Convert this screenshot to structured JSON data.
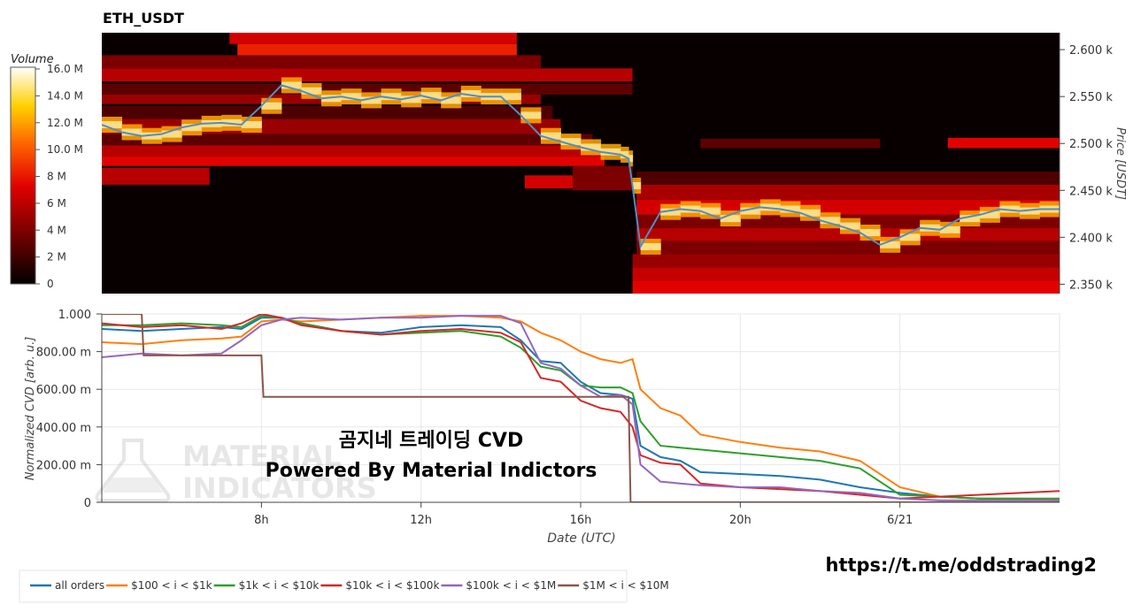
{
  "title": "ETH_USDT",
  "colorbar": {
    "label": "Volume",
    "ticks": [
      "16.0 M",
      "14.0 M",
      "12.0 M",
      "10.0 M",
      "8 M",
      "6 M",
      "4 M",
      "2 M",
      "0"
    ]
  },
  "heatmap_panel": {
    "ylabel": "Price [USDT]",
    "ticks": [
      "2.600 k",
      "2.550 k",
      "2.500 k",
      "2.450 k",
      "2.400 k",
      "2.350 k"
    ]
  },
  "cvd_panel": {
    "ylabel": "Normalized CVD [arb. u.]",
    "yticks": [
      "1.000",
      "800.00 m",
      "600.00 m",
      "400.00 m",
      "200.00 m",
      "0"
    ],
    "xticks": [
      "8h",
      "12h",
      "16h",
      "20h",
      "6/21"
    ],
    "xlabel": "Date (UTC)"
  },
  "overlay": {
    "line1": "곰지네 트레이딩 CVD",
    "line2": "Powered By Material Indictors"
  },
  "watermark": {
    "line1": "MATERIAL",
    "line2": "INDICATORS"
  },
  "link": "https://t.me/oddstrading2",
  "colors": {
    "all_orders": "#1f77b4",
    "s100_1k": "#ff7f0e",
    "s1k_10k": "#2ca02c",
    "s10k_100k": "#d62728",
    "s100k_1m": "#9467bd",
    "s1m_10m": "#8c564b",
    "price_line": "#4a90c8",
    "heat_low": "#000000",
    "heat_mid": "#cc0000",
    "heat_high": "#ffff66"
  },
  "chart_data": [
    {
      "type": "heatmap",
      "title": "ETH_USDT",
      "xlabel": "",
      "ylabel": "Price [USDT]",
      "ylim": [
        2340,
        2618
      ],
      "xlim": [
        4,
        28
      ],
      "value_range": [
        0,
        16.5
      ],
      "value_unit": "M",
      "price_series": {
        "x": [
          4.0,
          4.5,
          5.0,
          5.5,
          6.0,
          6.5,
          7.0,
          7.5,
          8.0,
          8.5,
          9.0,
          9.5,
          10.0,
          10.5,
          11.0,
          11.5,
          12.0,
          12.5,
          13.0,
          13.5,
          14.0,
          14.5,
          15.0,
          15.5,
          16.0,
          16.5,
          17.0,
          17.2,
          17.3,
          17.5,
          18.0,
          18.5,
          19.0,
          19.5,
          20.0,
          20.5,
          21.0,
          21.5,
          22.0,
          22.5,
          23.0,
          23.5,
          24.0,
          24.5,
          25.0,
          25.5,
          26.0,
          26.5,
          27.0,
          27.5,
          28.0
        ],
        "y": [
          2520,
          2512,
          2508,
          2510,
          2517,
          2521,
          2522,
          2520,
          2540,
          2562,
          2556,
          2548,
          2550,
          2546,
          2550,
          2547,
          2551,
          2546,
          2553,
          2550,
          2550,
          2530,
          2508,
          2502,
          2496,
          2491,
          2488,
          2484,
          2455,
          2390,
          2427,
          2430,
          2428,
          2420,
          2428,
          2432,
          2430,
          2426,
          2418,
          2412,
          2405,
          2392,
          2400,
          2410,
          2408,
          2420,
          2424,
          2430,
          2428,
          2430,
          2430
        ]
      },
      "bands": [
        {
          "y0": 2606,
          "y1": 2618,
          "x0": 7.2,
          "x1": 14.4,
          "v": 7
        },
        {
          "y0": 2594,
          "y1": 2606,
          "x0": 7.4,
          "x1": 14.4,
          "v": 8.5
        },
        {
          "y0": 2580,
          "y1": 2594,
          "x0": 4.0,
          "x1": 15.0,
          "v": 4
        },
        {
          "y0": 2566,
          "y1": 2580,
          "x0": 4.0,
          "x1": 17.3,
          "v": 6
        },
        {
          "y0": 2552,
          "y1": 2564,
          "x0": 4.0,
          "x1": 17.3,
          "v": 3
        },
        {
          "y0": 2542,
          "y1": 2552,
          "x0": 4.0,
          "x1": 15.0,
          "v": 5
        },
        {
          "y0": 2526,
          "y1": 2540,
          "x0": 4.0,
          "x1": 15.3,
          "v": 2.5
        },
        {
          "y0": 2510,
          "y1": 2526,
          "x0": 4.0,
          "x1": 15.5,
          "v": 5
        },
        {
          "y0": 2498,
          "y1": 2510,
          "x0": 4.0,
          "x1": 16.3,
          "v": 3
        },
        {
          "y0": 2486,
          "y1": 2498,
          "x0": 4.0,
          "x1": 16.5,
          "v": 6
        },
        {
          "y0": 2476,
          "y1": 2486,
          "x0": 4.0,
          "x1": 16.6,
          "v": 7.5
        },
        {
          "y0": 2456,
          "y1": 2474,
          "x0": 4.0,
          "x1": 6.7,
          "v": 6
        },
        {
          "y0": 2452,
          "y1": 2466,
          "x0": 14.6,
          "x1": 17.3,
          "v": 7
        },
        {
          "y0": 2450,
          "y1": 2476,
          "x0": 15.8,
          "x1": 17.3,
          "v": 4
        },
        {
          "y0": 2495,
          "y1": 2505,
          "x0": 19.0,
          "x1": 23.5,
          "v": 3
        },
        {
          "y0": 2495,
          "y1": 2506,
          "x0": 25.2,
          "x1": 28.0,
          "v": 7.5
        },
        {
          "y0": 2456,
          "y1": 2470,
          "x0": 17.4,
          "x1": 28.0,
          "v": 2.5
        },
        {
          "y0": 2440,
          "y1": 2456,
          "x0": 17.4,
          "x1": 28.0,
          "v": 5.5
        },
        {
          "y0": 2424,
          "y1": 2440,
          "x0": 17.4,
          "x1": 28.0,
          "v": 7
        },
        {
          "y0": 2410,
          "y1": 2424,
          "x0": 17.4,
          "x1": 28.0,
          "v": 4
        },
        {
          "y0": 2396,
          "y1": 2410,
          "x0": 17.4,
          "x1": 28.0,
          "v": 6
        },
        {
          "y0": 2382,
          "y1": 2396,
          "x0": 17.4,
          "x1": 28.0,
          "v": 4
        },
        {
          "y0": 2368,
          "y1": 2382,
          "x0": 17.3,
          "x1": 28.0,
          "v": 5
        },
        {
          "y0": 2354,
          "y1": 2368,
          "x0": 17.3,
          "x1": 28.0,
          "v": 6.5
        },
        {
          "y0": 2340,
          "y1": 2354,
          "x0": 17.3,
          "x1": 28.0,
          "v": 7.5
        }
      ]
    },
    {
      "type": "line",
      "title": "",
      "xlabel": "Date (UTC)",
      "ylabel": "Normalized CVD [arb. u.]",
      "x_ticks": [
        8,
        12,
        16,
        20,
        24
      ],
      "x_tick_labels": [
        "8h",
        "12h",
        "16h",
        "20h",
        "6/21"
      ],
      "xlim": [
        4,
        28
      ],
      "ylim": [
        0,
        1.0
      ],
      "grid": true,
      "legend": "bottom-left",
      "series": [
        {
          "name": "all orders",
          "x": [
            4,
            5,
            6,
            7,
            7.5,
            8,
            8.5,
            9,
            10,
            11,
            12,
            13,
            14,
            14.5,
            15,
            15.5,
            16,
            16.5,
            17,
            17.3,
            17.5,
            18,
            18.5,
            19,
            20,
            21,
            22,
            23,
            24,
            25,
            26,
            27,
            28
          ],
          "y": [
            0.92,
            0.91,
            0.92,
            0.93,
            0.92,
            0.98,
            0.98,
            0.95,
            0.91,
            0.9,
            0.93,
            0.94,
            0.93,
            0.86,
            0.75,
            0.74,
            0.64,
            0.58,
            0.57,
            0.55,
            0.3,
            0.24,
            0.22,
            0.16,
            0.15,
            0.14,
            0.12,
            0.08,
            0.05,
            0.03,
            0.02,
            0.015,
            0.01
          ]
        },
        {
          "name": "$100 < i < $1k",
          "x": [
            4,
            5,
            6,
            7,
            7.5,
            8,
            8.5,
            9,
            10,
            11,
            12,
            13,
            14,
            14.5,
            15,
            15.5,
            16,
            16.5,
            17,
            17.3,
            17.5,
            18,
            18.5,
            19,
            20,
            21,
            22,
            23,
            24,
            25,
            26,
            27,
            28
          ],
          "y": [
            0.85,
            0.84,
            0.86,
            0.87,
            0.88,
            0.96,
            0.97,
            0.96,
            0.97,
            0.98,
            0.99,
            0.99,
            0.98,
            0.96,
            0.9,
            0.86,
            0.8,
            0.76,
            0.74,
            0.76,
            0.6,
            0.5,
            0.46,
            0.36,
            0.32,
            0.29,
            0.27,
            0.22,
            0.08,
            0.03,
            0.02,
            0.02,
            0.015
          ]
        },
        {
          "name": "$1k < i < $10k",
          "x": [
            4,
            5,
            6,
            7,
            7.5,
            8,
            8.5,
            9,
            10,
            11,
            12,
            13,
            14,
            14.5,
            15,
            15.5,
            16,
            16.5,
            17,
            17.3,
            17.5,
            18,
            18.5,
            19,
            20,
            21,
            22,
            23,
            24,
            25,
            26,
            27,
            28
          ],
          "y": [
            0.94,
            0.94,
            0.95,
            0.94,
            0.93,
            0.99,
            0.98,
            0.95,
            0.91,
            0.89,
            0.9,
            0.91,
            0.88,
            0.82,
            0.72,
            0.7,
            0.62,
            0.61,
            0.61,
            0.58,
            0.43,
            0.3,
            0.29,
            0.28,
            0.26,
            0.24,
            0.22,
            0.18,
            0.04,
            0.03,
            0.02,
            0.02,
            0.02
          ]
        },
        {
          "name": "$10k < i < $100k",
          "x": [
            4,
            5,
            6,
            7,
            7.5,
            8,
            8.5,
            9,
            10,
            11,
            12,
            13,
            14,
            14.5,
            15,
            15.5,
            16,
            16.5,
            17,
            17.3,
            17.5,
            18,
            18.5,
            19,
            20,
            21,
            22,
            23,
            24,
            25,
            26,
            27,
            28
          ],
          "y": [
            0.95,
            0.93,
            0.94,
            0.92,
            0.95,
            1.0,
            0.98,
            0.94,
            0.91,
            0.89,
            0.91,
            0.92,
            0.9,
            0.85,
            0.66,
            0.64,
            0.54,
            0.5,
            0.48,
            0.4,
            0.25,
            0.21,
            0.2,
            0.1,
            0.08,
            0.07,
            0.06,
            0.04,
            0.02,
            0.03,
            0.04,
            0.05,
            0.06
          ]
        },
        {
          "name": "$100k < i < $1M",
          "x": [
            4,
            5,
            6,
            7,
            7.5,
            8,
            8.5,
            9,
            10,
            11,
            12,
            13,
            14,
            14.5,
            15,
            15.5,
            16,
            16.5,
            17,
            17.3,
            17.5,
            18,
            18.5,
            19,
            20,
            21,
            22,
            23,
            24,
            25,
            26,
            27,
            28
          ],
          "y": [
            0.77,
            0.79,
            0.78,
            0.79,
            0.86,
            0.94,
            0.97,
            0.98,
            0.97,
            0.98,
            0.98,
            0.99,
            0.99,
            0.95,
            0.74,
            0.71,
            0.62,
            0.56,
            0.57,
            0.52,
            0.2,
            0.11,
            0.1,
            0.09,
            0.08,
            0.08,
            0.06,
            0.05,
            0.02,
            0.01,
            0.01,
            0.01,
            0.01
          ]
        },
        {
          "name": "$1M < i < $10M",
          "x": [
            4,
            5.0,
            5.05,
            6,
            7,
            8,
            8.05,
            9,
            12,
            14,
            16,
            17,
            17.2,
            17.25,
            17.5,
            20,
            24,
            28
          ],
          "y": [
            1.0,
            1.0,
            0.78,
            0.78,
            0.78,
            0.78,
            0.56,
            0.56,
            0.56,
            0.56,
            0.56,
            0.56,
            0.56,
            0.0,
            0.0,
            0.0,
            0.0,
            0.0
          ]
        }
      ]
    }
  ]
}
